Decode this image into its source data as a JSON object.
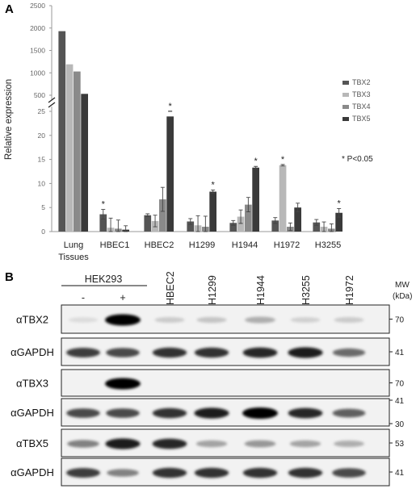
{
  "figure": {
    "panel_a_label": "A",
    "panel_b_label": "B",
    "significance_note": "* P<0.05",
    "asterisk": "*"
  },
  "chart_data": {
    "type": "bar",
    "title": "",
    "xlabel": "",
    "ylabel": "Relative expression",
    "categories": [
      "Lung Tissues",
      "HBEC1",
      "HBEC2",
      "H1299",
      "H1944",
      "H1972",
      "H3255"
    ],
    "series": [
      {
        "name": "TBX2",
        "color": "#555555",
        "values": [
          1930,
          3.6,
          3.4,
          2.1,
          1.8,
          2.3,
          1.9
        ],
        "errors": [
          0,
          1.0,
          0.3,
          0.6,
          0.5,
          0.6,
          0.6
        ]
      },
      {
        "name": "TBX3",
        "color": "#b8b8b8",
        "values": [
          1190,
          0.8,
          2.2,
          1.3,
          3.1,
          13.8,
          1.0
        ],
        "errors": [
          0,
          2.0,
          1.2,
          2.0,
          1.4,
          0.15,
          1.0
        ]
      },
      {
        "name": "TBX4",
        "color": "#8a8a8a",
        "values": [
          1030,
          0.6,
          6.7,
          1.0,
          5.6,
          1.0,
          0.6
        ],
        "errors": [
          0,
          1.8,
          2.5,
          2.2,
          1.5,
          0.8,
          1.0
        ]
      },
      {
        "name": "TBX5",
        "color": "#3a3a3a",
        "values": [
          530,
          0.4,
          25.4,
          8.3,
          13.3,
          5.0,
          3.9
        ],
        "errors": [
          0,
          0.8,
          0.35,
          0.35,
          0.25,
          0.9,
          0.9
        ]
      }
    ],
    "significant": [
      {
        "category": "HBEC1",
        "series": "TBX2"
      },
      {
        "category": "HBEC2",
        "series": "TBX5"
      },
      {
        "category": "H1299",
        "series": "TBX5"
      },
      {
        "category": "H1944",
        "series": "TBX5"
      },
      {
        "category": "H1972",
        "series": "TBX3"
      },
      {
        "category": "H3255",
        "series": "TBX5"
      }
    ],
    "y_axis_lower": {
      "range": [
        0,
        25
      ],
      "ticks": [
        "0",
        "5",
        "10",
        "15",
        "20",
        "25"
      ]
    },
    "y_axis_upper": {
      "range": [
        500,
        2500
      ],
      "ticks": [
        "500",
        "1000",
        "1500",
        "2000",
        "2500"
      ]
    },
    "axis_break": true,
    "legend_position": "right",
    "grid": false
  },
  "western_blot": {
    "column_group_label": "HEK293",
    "lanes": [
      "-",
      "+",
      "HBEC2",
      "H1299",
      "H1944",
      "H3255",
      "H1972"
    ],
    "mw_header": "MW\n(kDa)",
    "mw_header_lines": [
      "MW",
      "(kDa)"
    ],
    "rows": [
      {
        "label": "αTBX2",
        "mw": [
          "70"
        ],
        "intensity": [
          0.05,
          1.0,
          0.12,
          0.15,
          0.25,
          0.1,
          0.12
        ]
      },
      {
        "label": "αGAPDH",
        "mw": [
          "41"
        ],
        "intensity": [
          0.75,
          0.7,
          0.8,
          0.8,
          0.85,
          0.9,
          0.55
        ]
      },
      {
        "label": "αTBX3",
        "mw": [
          "70"
        ],
        "intensity": [
          0.0,
          1.0,
          0.0,
          0.0,
          0.0,
          0.0,
          0.0
        ]
      },
      {
        "label": "αGAPDH",
        "mw": [
          "41",
          "30"
        ],
        "intensity": [
          0.7,
          0.7,
          0.8,
          0.9,
          1.0,
          0.85,
          0.6
        ]
      },
      {
        "label": "αTBX5",
        "mw": [
          "53"
        ],
        "intensity": [
          0.45,
          0.9,
          0.85,
          0.3,
          0.35,
          0.3,
          0.25
        ]
      },
      {
        "label": "αGAPDH",
        "mw": [
          "41"
        ],
        "intensity": [
          0.75,
          0.45,
          0.8,
          0.8,
          0.8,
          0.8,
          0.7
        ]
      }
    ]
  }
}
